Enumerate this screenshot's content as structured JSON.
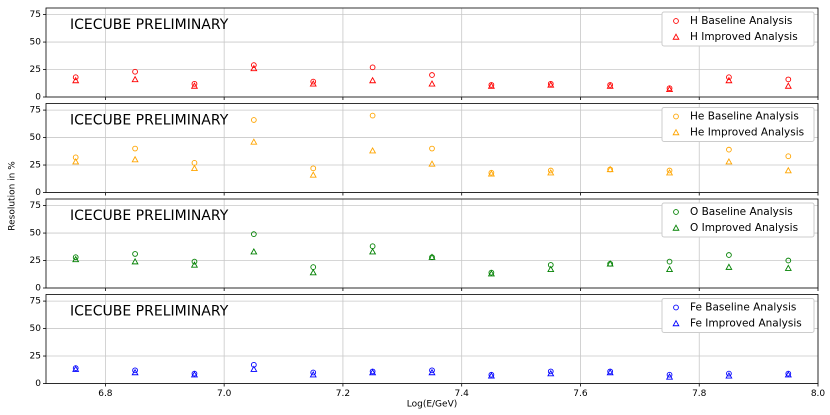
{
  "xlabel": "Log(E/GeV)",
  "ylabel": "Resolution in %",
  "chart_data": [
    {
      "type": "scatter",
      "annotation": "ICECUBE PRELIMINARY",
      "xlim": [
        6.7,
        8.0
      ],
      "ylim": [
        0,
        81
      ],
      "yticks": [
        0,
        25,
        50,
        75
      ],
      "xticks": [
        6.8,
        {
          "value": 7,
          "label": "7.0"
        },
        7.2,
        7.4,
        7.6,
        7.8,
        {
          "value": 8,
          "label": "8.0"
        }
      ],
      "grid": true,
      "legend": "upper right",
      "x": [
        6.75,
        6.85,
        6.95,
        7.05,
        7.15,
        7.25,
        7.35,
        7.45,
        7.55,
        7.65,
        7.75,
        7.85,
        7.95
      ],
      "series": [
        {
          "name": "H Baseline Analysis",
          "color": "#ff0000",
          "marker": "o",
          "values": [
            18,
            23,
            12,
            29,
            14,
            27,
            20,
            11,
            12,
            11,
            8,
            18,
            16
          ]
        },
        {
          "name": "H Improved Analysis",
          "color": "#ff0000",
          "marker": "^",
          "values": [
            15,
            16,
            10,
            26,
            12,
            15,
            12,
            10,
            11,
            10,
            7,
            15,
            10
          ]
        }
      ]
    },
    {
      "type": "scatter",
      "annotation": "ICECUBE PRELIMINARY",
      "xlim": [
        6.7,
        8.0
      ],
      "ylim": [
        0,
        81
      ],
      "yticks": [
        0,
        25,
        50,
        75
      ],
      "xticks": [
        6.8,
        {
          "value": 7,
          "label": "7.0"
        },
        7.2,
        7.4,
        7.6,
        7.8,
        {
          "value": 8,
          "label": "8.0"
        }
      ],
      "grid": true,
      "legend": "upper right",
      "x": [
        6.75,
        6.85,
        6.95,
        7.05,
        7.15,
        7.25,
        7.35,
        7.45,
        7.55,
        7.65,
        7.75,
        7.85,
        7.95
      ],
      "series": [
        {
          "name": "He Baseline Analysis",
          "color": "#ffa500",
          "marker": "o",
          "values": [
            32,
            40,
            27,
            66,
            22,
            70,
            40,
            18,
            20,
            21,
            20,
            39,
            33
          ]
        },
        {
          "name": "He Improved Analysis",
          "color": "#ffa500",
          "marker": "^",
          "values": [
            28,
            30,
            22,
            46,
            16,
            38,
            26,
            17,
            18,
            21,
            18,
            28,
            20
          ]
        }
      ]
    },
    {
      "type": "scatter",
      "annotation": "ICECUBE PRELIMINARY",
      "xlim": [
        6.7,
        8.0
      ],
      "ylim": [
        0,
        81
      ],
      "yticks": [
        0,
        25,
        50,
        75
      ],
      "xticks": [
        6.8,
        {
          "value": 7,
          "label": "7.0"
        },
        7.2,
        7.4,
        7.6,
        7.8,
        {
          "value": 8,
          "label": "8.0"
        }
      ],
      "grid": true,
      "legend": "upper right",
      "x": [
        6.75,
        6.85,
        6.95,
        7.05,
        7.15,
        7.25,
        7.35,
        7.45,
        7.55,
        7.65,
        7.75,
        7.85,
        7.95
      ],
      "series": [
        {
          "name": "O Baseline Analysis",
          "color": "#008000",
          "marker": "o",
          "values": [
            28,
            31,
            24,
            49,
            19,
            38,
            28,
            14,
            21,
            22,
            24,
            30,
            25
          ]
        },
        {
          "name": "O Improved Analysis",
          "color": "#008000",
          "marker": "^",
          "values": [
            26,
            24,
            21,
            33,
            14,
            33,
            28,
            13,
            17,
            22,
            17,
            19,
            18
          ]
        }
      ]
    },
    {
      "type": "scatter",
      "annotation": "ICECUBE PRELIMINARY",
      "xlim": [
        6.7,
        8.0
      ],
      "ylim": [
        0,
        81
      ],
      "yticks": [
        0,
        25,
        50,
        75
      ],
      "xticks": [
        6.8,
        {
          "value": 7,
          "label": "7.0"
        },
        7.2,
        7.4,
        7.6,
        7.8,
        {
          "value": 8,
          "label": "8.0"
        }
      ],
      "grid": true,
      "legend": "upper right",
      "x": [
        6.75,
        6.85,
        6.95,
        7.05,
        7.15,
        7.25,
        7.35,
        7.45,
        7.55,
        7.65,
        7.75,
        7.85,
        7.95
      ],
      "series": [
        {
          "name": "Fe Baseline Analysis",
          "color": "#0000ff",
          "marker": "o",
          "values": [
            14,
            12,
            9,
            17,
            10,
            11,
            12,
            8,
            11,
            11,
            8,
            9,
            9
          ]
        },
        {
          "name": "Fe Improved Analysis",
          "color": "#0000ff",
          "marker": "^",
          "values": [
            13,
            10,
            8,
            13,
            8,
            10,
            10,
            7,
            9,
            10,
            6,
            7,
            8
          ]
        }
      ]
    }
  ]
}
